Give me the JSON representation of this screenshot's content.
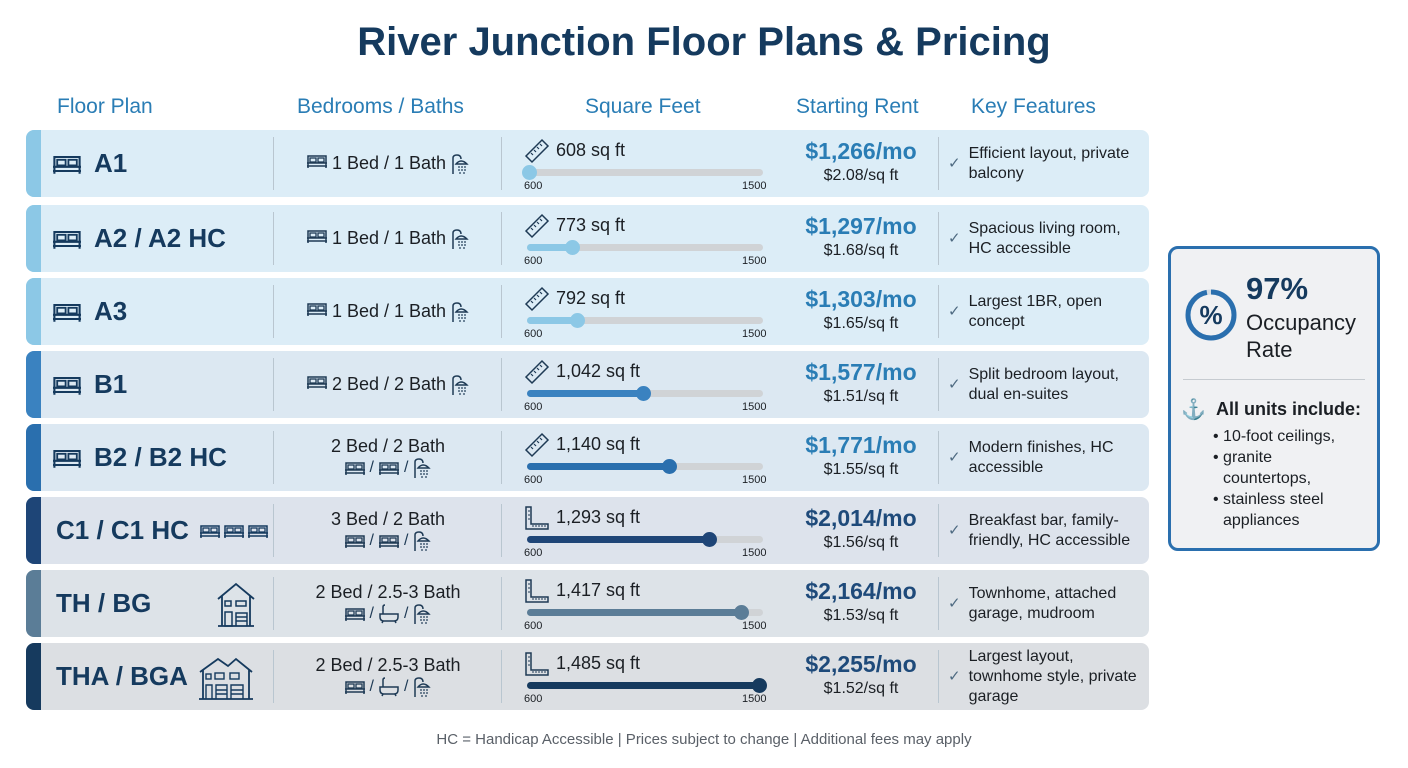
{
  "title": "River Junction Floor Plans & Pricing",
  "headers": [
    "Floor Plan",
    "Bedrooms / Baths",
    "Square Feet",
    "Starting Rent",
    "Key Features"
  ],
  "range": {
    "min": "600",
    "max": "1500"
  },
  "rows": [
    {
      "name": "A1",
      "plan_icons": [
        "bed"
      ],
      "beds": "1 Bed / 1 Bath",
      "bed_layout": "inline",
      "icons": [
        "bed",
        "shower"
      ],
      "sqft": "608 sq ft",
      "sqft_value": 608,
      "rent": "$1,266/mo",
      "per_sqft": "$2.08/sq ft",
      "features": "Efficient layout, private balcony",
      "accent": "#8cc8e6",
      "bg": "#dcedf7",
      "rent_color": "#2a7db5"
    },
    {
      "name": "A2 / A2 HC",
      "plan_icons": [
        "bed"
      ],
      "beds": "1 Bed / 1 Bath",
      "bed_layout": "inline",
      "icons": [
        "bed",
        "shower"
      ],
      "sqft": "773 sq ft",
      "sqft_value": 773,
      "rent": "$1,297/mo",
      "per_sqft": "$1.68/sq ft",
      "features": "Spacious living room, HC accessible",
      "accent": "#8cc8e6",
      "bg": "#dcedf7",
      "rent_color": "#2a7db5"
    },
    {
      "name": "A3",
      "plan_icons": [
        "bed"
      ],
      "beds": "1 Bed / 1 Bath",
      "bed_layout": "inline",
      "icons": [
        "bed",
        "shower"
      ],
      "sqft": "792 sq ft",
      "sqft_value": 792,
      "rent": "$1,303/mo",
      "per_sqft": "$1.65/sq ft",
      "features": "Largest 1BR, open concept",
      "accent": "#8cc8e6",
      "bg": "#dcedf7",
      "rent_color": "#2a7db5"
    },
    {
      "name": "B1",
      "plan_icons": [
        "bed"
      ],
      "beds": "2 Bed / 2 Bath",
      "bed_layout": "inline",
      "icons": [
        "bed",
        "shower"
      ],
      "sqft": "1,042 sq ft",
      "sqft_value": 1042,
      "rent": "$1,577/mo",
      "per_sqft": "$1.51/sq ft",
      "features": "Split bedroom layout, dual en-suites",
      "accent": "#3a82c0",
      "bg": "#dce8f2",
      "rent_color": "#2a7db5"
    },
    {
      "name": "B2 / B2 HC",
      "plan_icons": [
        "bed"
      ],
      "beds": "2 Bed / 2 Bath",
      "bed_layout": "stacked",
      "icons": [
        "bed",
        "bed",
        "shower"
      ],
      "sqft": "1,140 sq ft",
      "sqft_value": 1140,
      "rent": "$1,771/mo",
      "per_sqft": "$1.55/sq ft",
      "features": "Modern finishes, HC accessible",
      "accent": "#2a6fae",
      "bg": "#dce8f2",
      "rent_color": "#2a7db5"
    },
    {
      "name": "C1 / C1 HC",
      "plan_icons": [
        "bed",
        "bed",
        "bed"
      ],
      "beds": "3 Bed / 2 Bath",
      "bed_layout": "stacked",
      "icons": [
        "bed",
        "bed",
        "shower"
      ],
      "sqft": "1,293 sq ft",
      "sqft_value": 1293,
      "rent": "$2,014/mo",
      "per_sqft": "$1.56/sq ft",
      "features": "Breakfast bar, family-friendly, HC accessible",
      "accent": "#1e4577",
      "bg": "#dde3ec",
      "rent_color": "#1e4a7a"
    },
    {
      "name": "TH / BG",
      "plan_icons": [
        "house"
      ],
      "beds": "2 Bed / 2.5-3 Bath",
      "bed_layout": "stacked",
      "icons": [
        "bed",
        "bathtub",
        "shower"
      ],
      "sqft": "1,417 sq ft",
      "sqft_value": 1417,
      "rent": "$2,164/mo",
      "per_sqft": "$1.53/sq ft",
      "features": "Townhome, attached garage, mudroom",
      "accent": "#5b7d97",
      "bg": "#dde3e8",
      "rent_color": "#1e4a7a"
    },
    {
      "name": "THA / BGA",
      "plan_icons": [
        "townhouse"
      ],
      "beds": "2 Bed / 2.5-3 Bath",
      "bed_layout": "stacked",
      "icons": [
        "bed",
        "bathtub",
        "shower"
      ],
      "sqft": "1,485 sq ft",
      "sqft_value": 1485,
      "rent": "$2,255/mo",
      "per_sqft": "$1.52/sq ft",
      "features": "Largest layout, townhome style, private garage",
      "accent": "#163a5e",
      "bg": "#dcdfe3",
      "rent_color": "#1e4a7a"
    }
  ],
  "card": {
    "occupancy": "97%",
    "occupancy_value": 97,
    "occupancy_label": "Occupancy Rate",
    "includes_title": "All units include:",
    "includes": [
      "10-foot ceilings,",
      "granite countertops,",
      "stainless steel appliances"
    ]
  },
  "footer": "HC = Handicap Accessible  |  Prices subject to change  |  Additional fees may apply"
}
